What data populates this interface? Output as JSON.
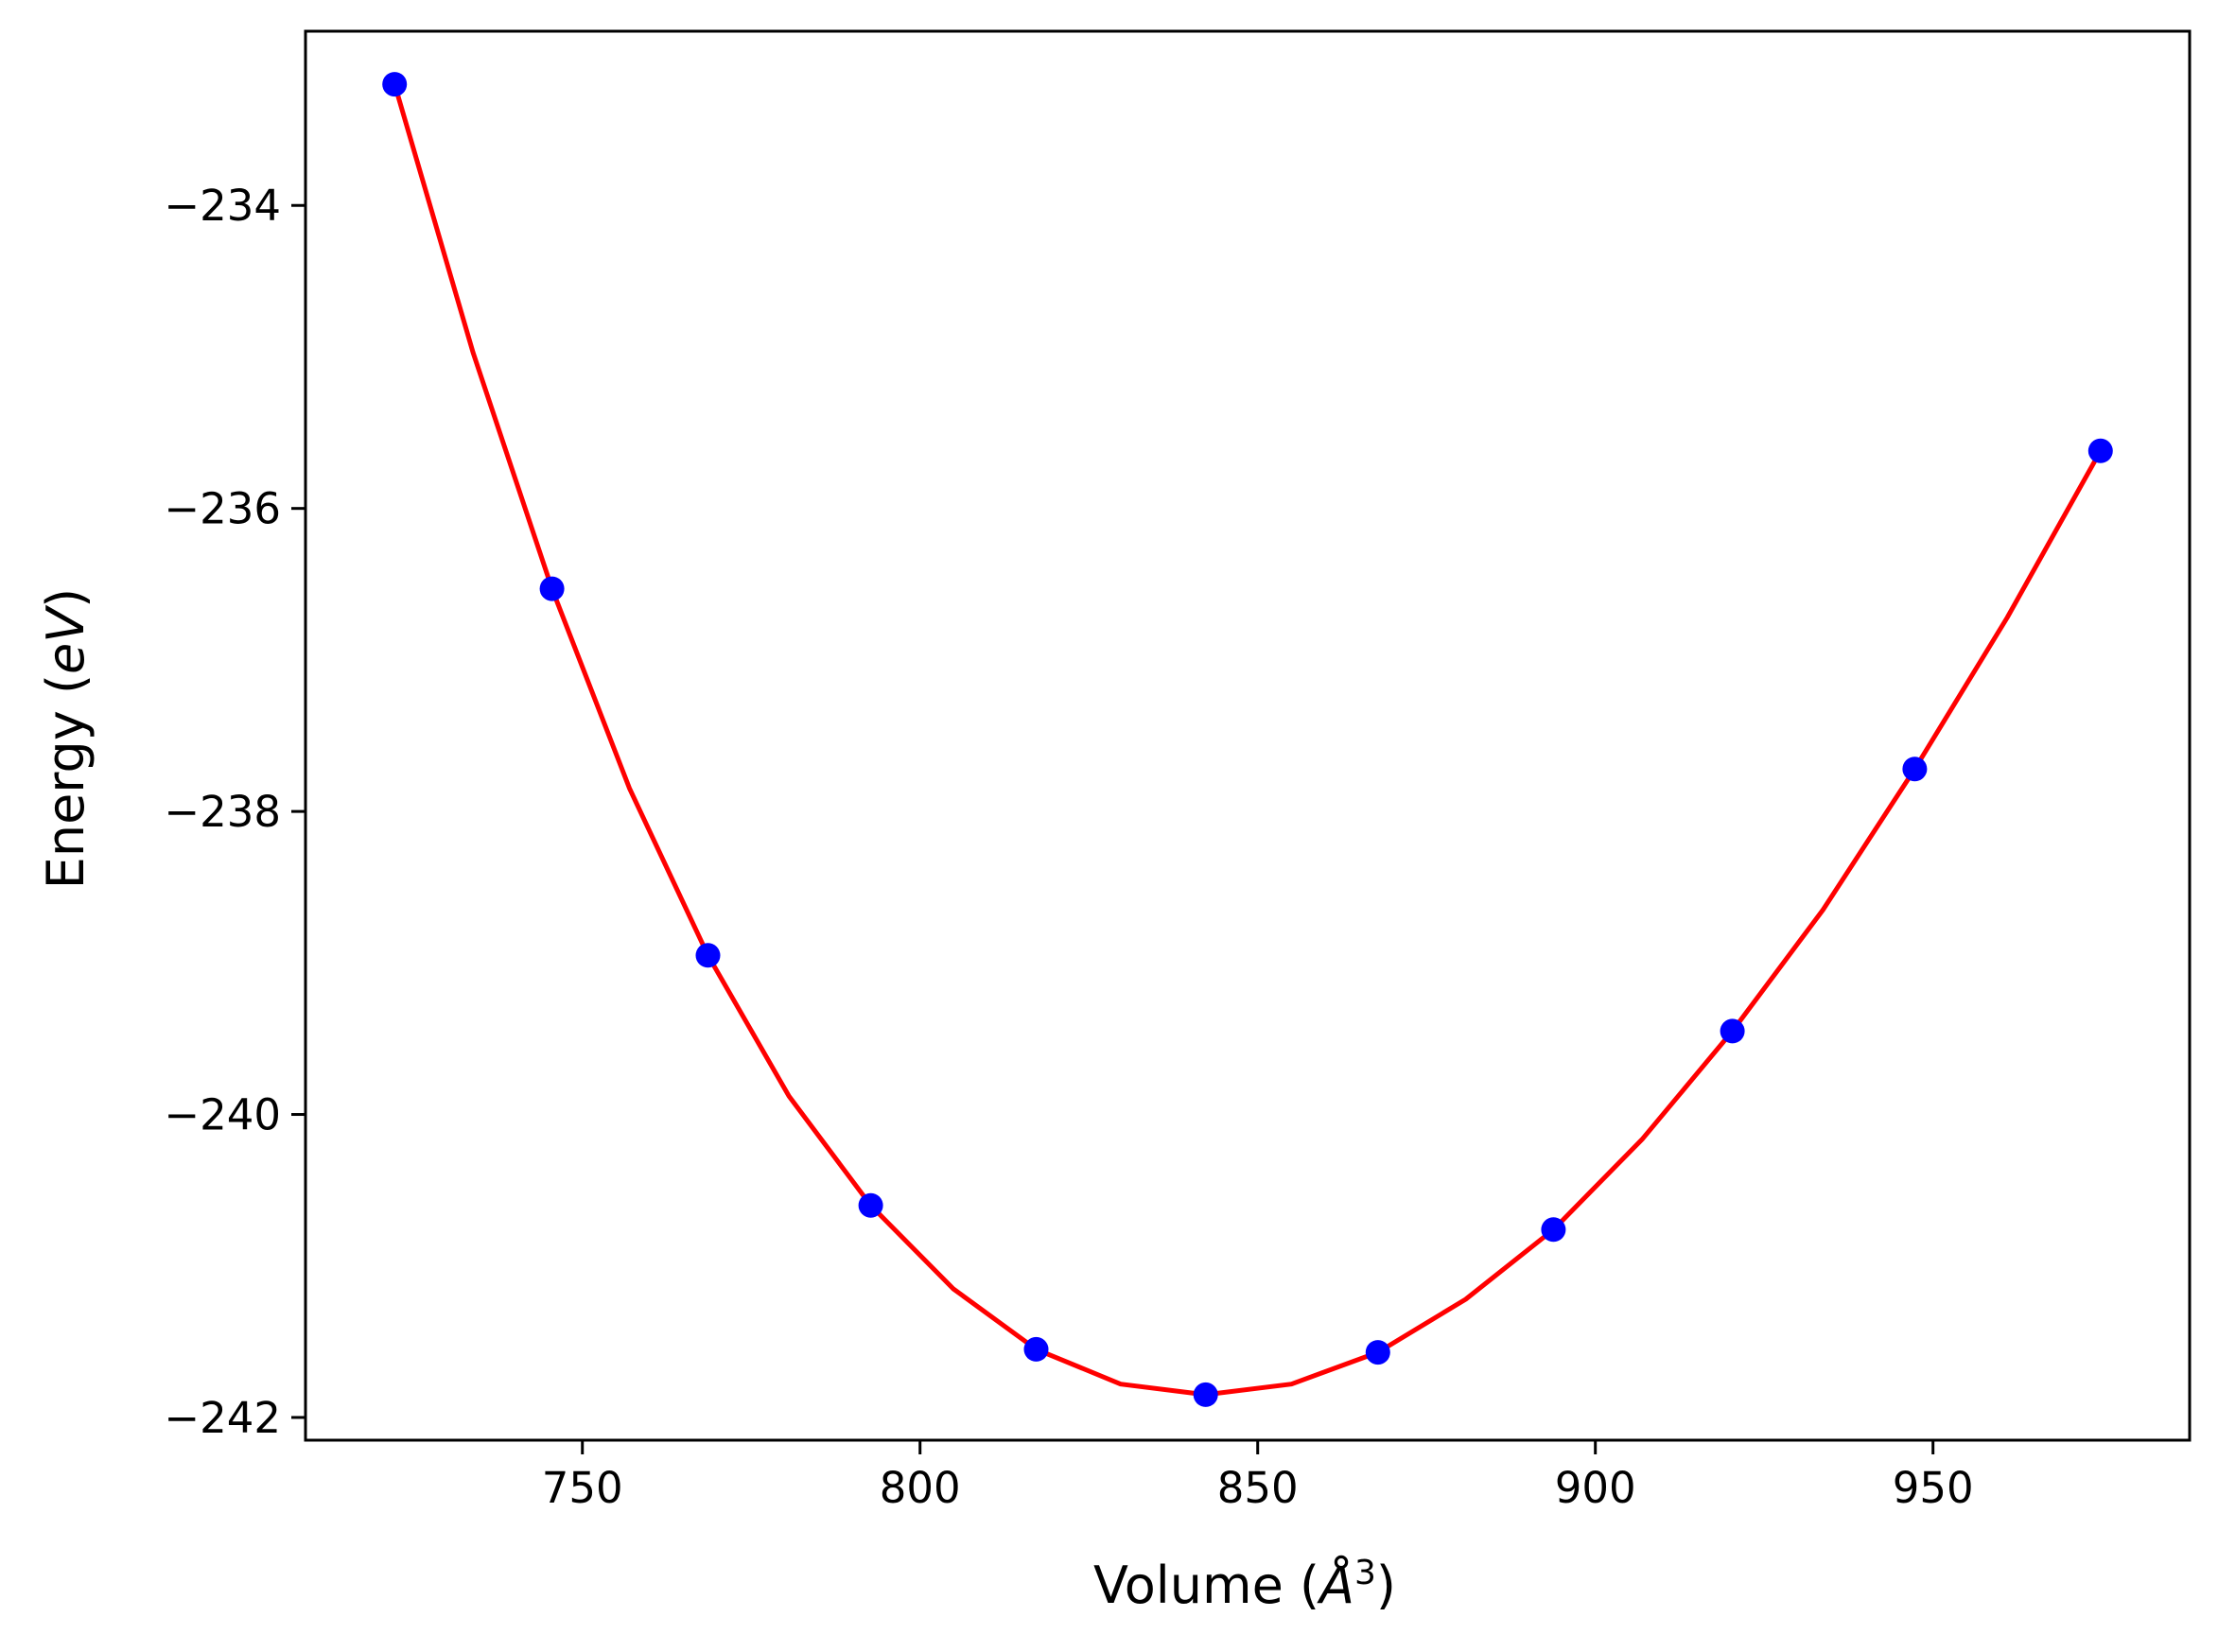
{
  "chart_data": {
    "type": "line",
    "title": "",
    "xlabel": "Volume ($\\AA^3$)",
    "xlabel_parts": {
      "prefix": "Volume (",
      "symbol": "Å",
      "superscript": "3",
      "suffix": ")"
    },
    "ylabel": "Energy ($eV$)",
    "ylabel_parts": {
      "prefix": "Energy (",
      "italic": "eV",
      "suffix": ")"
    },
    "xlim": [
      709,
      988
    ],
    "ylim": [
      -242.15,
      -232.85
    ],
    "xticks": [
      750,
      800,
      850,
      900,
      950
    ],
    "xtick_labels": [
      "750",
      "800",
      "850",
      "900",
      "950"
    ],
    "yticks": [
      -234,
      -236,
      -238,
      -240,
      -242
    ],
    "ytick_labels": [
      "−234",
      "−236",
      "−238",
      "−240",
      "−242"
    ],
    "grid": false,
    "legend": "none",
    "series": [
      {
        "kind": "scatter",
        "color": "#0000ff",
        "x": [
          722.2,
          745.5,
          768.6,
          792.7,
          817.2,
          842.3,
          867.8,
          893.8,
          920.3,
          947.3,
          974.8
        ],
        "y": [
          -233.2,
          -236.53,
          -238.95,
          -240.6,
          -241.55,
          -241.85,
          -241.57,
          -240.76,
          -239.45,
          -237.72,
          -235.62
        ]
      },
      {
        "kind": "line",
        "color": "#ff0000",
        "x": [
          722.2,
          733.8,
          745.5,
          757.0,
          768.6,
          780.6,
          792.7,
          804.9,
          817.2,
          829.7,
          842.3,
          855.0,
          867.8,
          880.8,
          893.8,
          907.0,
          920.3,
          933.7,
          947.3,
          961.0,
          974.8
        ],
        "y": [
          -233.2,
          -234.97,
          -236.53,
          -237.85,
          -238.95,
          -239.88,
          -240.6,
          -241.15,
          -241.55,
          -241.78,
          -241.85,
          -241.78,
          -241.57,
          -241.22,
          -240.76,
          -240.16,
          -239.45,
          -238.65,
          -237.72,
          -236.72,
          -235.62
        ]
      }
    ]
  }
}
